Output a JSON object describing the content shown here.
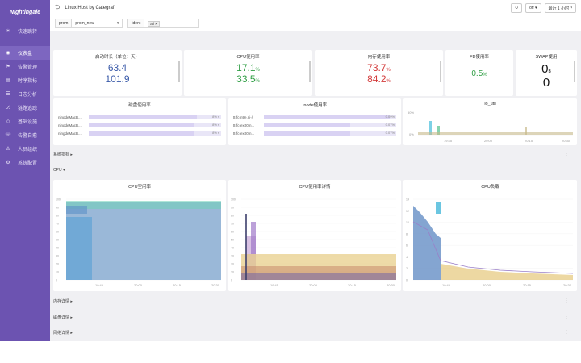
{
  "sidebar": {
    "logo": "Nightingale",
    "items": [
      {
        "icon": "☀",
        "label": "快速跳转",
        "active": false
      },
      {
        "icon": "◉",
        "label": "仪表盘",
        "active": true
      },
      {
        "icon": "⚑",
        "label": "告警管理",
        "active": false
      },
      {
        "icon": "▤",
        "label": "时序指标",
        "active": false
      },
      {
        "icon": "☰",
        "label": "日志分析",
        "active": false
      },
      {
        "icon": "⎇",
        "label": "链路追踪",
        "active": false
      },
      {
        "icon": "◇",
        "label": "基础设施",
        "active": false
      },
      {
        "icon": "☏",
        "label": "告警自愈",
        "active": false
      },
      {
        "icon": "♙",
        "label": "人员组织",
        "active": false
      },
      {
        "icon": "⚙",
        "label": "系统配置",
        "active": false
      }
    ]
  },
  "header": {
    "title": "Linux Host by Categraf",
    "refresh_label": "off",
    "time_range": "最近 1 小时"
  },
  "filters": {
    "prom_label": "prom",
    "prom_value": "prom_new",
    "ident_label": "ident",
    "ident_tag": "all"
  },
  "stats": {
    "uptime": {
      "title": "启动时长（单位：天）",
      "values": [
        "63.4",
        "101.9"
      ]
    },
    "cpu": {
      "title": "CPU使用率",
      "values": [
        "17.1",
        "33.5"
      ],
      "unit": "%"
    },
    "mem": {
      "title": "内存使用率",
      "values": [
        "73.7",
        "84.2"
      ],
      "unit": "%"
    },
    "fd": {
      "title": "FD使用率",
      "value": "0.5",
      "unit": "%"
    },
    "swap": {
      "title": "SWAP使用",
      "values": [
        "0",
        "0"
      ],
      "unit": "B"
    }
  },
  "disk": {
    "title": "磁盘使用率",
    "rows": [
      {
        "label": "ningdeMacB...",
        "value": "8% s",
        "pct": 0.82
      },
      {
        "label": "ningdeMacB...",
        "value": "8% s",
        "pct": 0.8
      },
      {
        "label": "ningdeMacB...",
        "value": "8% s",
        "pct": 0.8
      }
    ]
  },
  "inode": {
    "title": "Inode使用率",
    "rows": [
      {
        "label": "tt-fc-n9e.nj-/",
        "value": "0.09%",
        "pct": 0.95
      },
      {
        "label": "tt-fc-ex00.n...",
        "value": "0.07%",
        "pct": 0.65
      },
      {
        "label": "tt-fc-ex00.n...",
        "value": "0.07%",
        "pct": 0.65
      }
    ]
  },
  "ioutil": {
    "title": "io_util",
    "yticks": [
      "50%",
      "0%"
    ],
    "xticks": [
      "19:45",
      "20:00",
      "20:15",
      "20:30"
    ]
  },
  "sections": {
    "system": "系统指标",
    "cpu": "CPU",
    "memory": "内存详情",
    "disk": "磁盘详情",
    "network": "网络详情"
  },
  "charts": {
    "cpu_idle": {
      "title": "CPU空闲率",
      "yticks": [
        "100",
        "90",
        "80",
        "70",
        "60",
        "50",
        "40",
        "30",
        "20",
        "10",
        "0"
      ],
      "xticks": [
        "19:45",
        "20:00",
        "20:15",
        "20:30"
      ]
    },
    "cpu_detail": {
      "title": "CPU使用率详情",
      "yticks": [
        "100",
        "90",
        "80",
        "70",
        "60",
        "50",
        "40",
        "30",
        "20",
        "10",
        "0"
      ],
      "xticks": [
        "19:45",
        "20:00",
        "20:15",
        "20:30"
      ]
    },
    "cpu_load": {
      "title": "CPU负载",
      "yticks": [
        "14",
        "12",
        "10",
        "8",
        "6",
        "4",
        "2",
        "0"
      ],
      "xticks": [
        "19:45",
        "20:00",
        "20:15",
        "20:30"
      ]
    }
  },
  "colors": {
    "sidebar": "#6c53b1",
    "green": "#2f9e44",
    "red": "#d33a3a",
    "blue": "#3b5ba9"
  }
}
